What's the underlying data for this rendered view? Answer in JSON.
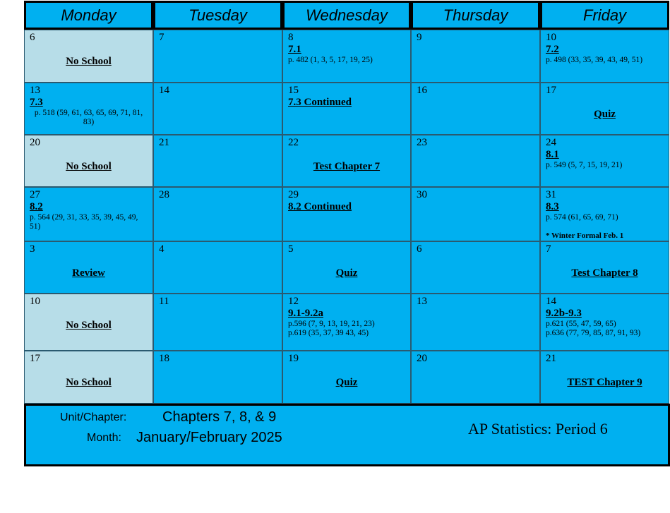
{
  "days_header": [
    "Monday",
    "Tuesday",
    "Wednesday",
    "Thursday",
    "Friday"
  ],
  "colors": {
    "cell": "#00b0f0",
    "no_school": "#b7dde8",
    "border": "#000000"
  },
  "weeks": [
    [
      {
        "day": "6",
        "label": "No School",
        "off": true
      },
      {
        "day": "7"
      },
      {
        "day": "8",
        "topic": "7.1",
        "hw": [
          "p. 482 (1, 3, 5, 17, 19, 25)"
        ]
      },
      {
        "day": "9"
      },
      {
        "day": "10",
        "topic": "7.2",
        "hw": [
          "p. 498 (33, 35, 39, 43, 49, 51)"
        ]
      }
    ],
    [
      {
        "day": "13",
        "topic": "7.3",
        "hw": [
          "p. 518 (59, 61, 63, 65, 69, 71, 81, 83)"
        ],
        "hw_center": true
      },
      {
        "day": "14"
      },
      {
        "day": "15",
        "topic": "7.3 Continued"
      },
      {
        "day": "16"
      },
      {
        "day": "17",
        "label": "Quiz"
      }
    ],
    [
      {
        "day": "20",
        "label": "No School",
        "off": true
      },
      {
        "day": "21"
      },
      {
        "day": "22",
        "label": "Test Chapter 7"
      },
      {
        "day": "23"
      },
      {
        "day": "24",
        "topic": "8.1",
        "hw": [
          "p. 549 (5, 7, 15, 19, 21)"
        ]
      }
    ],
    [
      {
        "day": "27",
        "topic": "8.2",
        "hw": [
          "p. 564 (29, 31, 33, 35, 39, 45, 49, 51)"
        ]
      },
      {
        "day": "28"
      },
      {
        "day": "29",
        "topic": "8.2 Continued"
      },
      {
        "day": "30"
      },
      {
        "day": "31",
        "topic": "8.3",
        "hw": [
          "p. 574 (61, 65, 69, 71)"
        ],
        "note": "* Winter Formal Feb. 1"
      }
    ],
    [
      {
        "day": "3",
        "label": "Review"
      },
      {
        "day": "4"
      },
      {
        "day": "5",
        "label": "Quiz"
      },
      {
        "day": "6"
      },
      {
        "day": "7",
        "label": "Test Chapter 8"
      }
    ],
    [
      {
        "day": "10",
        "label": "No School",
        "off": true
      },
      {
        "day": "11"
      },
      {
        "day": "12",
        "topic": "9.1-9.2a",
        "hw": [
          "p.596 (7, 9, 13, 19, 21, 23)",
          "p.619 (35, 37, 39 43, 45)"
        ]
      },
      {
        "day": "13"
      },
      {
        "day": "14",
        "topic": "9.2b-9.3",
        "hw": [
          "p.621 (55, 47, 59, 65)",
          "p.636 (77, 79, 85, 87, 91, 93)"
        ]
      }
    ],
    [
      {
        "day": "17",
        "label": "No School",
        "off": true
      },
      {
        "day": "18"
      },
      {
        "day": "19",
        "label": "Quiz"
      },
      {
        "day": "20"
      },
      {
        "day": "21",
        "label": "TEST Chapter 9"
      }
    ]
  ],
  "footer": {
    "unit_label": "Unit/Chapter:",
    "unit_value": "Chapters 7, 8, & 9",
    "month_label": "Month:",
    "month_value": "January/February 2025",
    "course": "AP Statistics: Period 6"
  }
}
